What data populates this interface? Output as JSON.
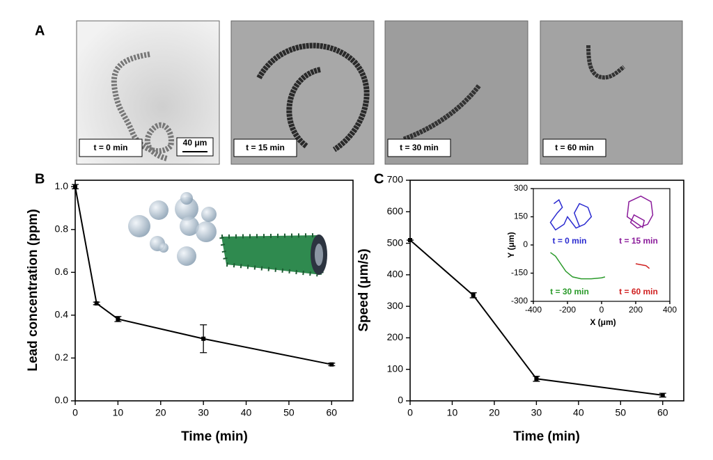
{
  "panel_a": {
    "label": "A",
    "frames": [
      {
        "label": "t = 0 min"
      },
      {
        "label": "t = 15 min"
      },
      {
        "label": "t = 30 min"
      },
      {
        "label": "t = 60 min"
      }
    ],
    "scale_bar": "40 μm"
  },
  "chart_data": [
    {
      "type": "line",
      "label": "B",
      "x_label": "Time (min)",
      "y_label": "Lead concentration (ppm)",
      "x": [
        0,
        5,
        10,
        30,
        60
      ],
      "values": [
        1.0,
        0.455,
        0.382,
        0.29,
        0.17
      ],
      "errors": [
        0.01,
        0.006,
        0.012,
        0.065,
        0.006
      ],
      "color": "#000000",
      "xlim": [
        0,
        65
      ],
      "xticks": [
        0,
        10,
        20,
        30,
        40,
        50,
        60
      ],
      "ylim": [
        0,
        1.03
      ],
      "yticks": [
        {
          "value": 0,
          "label": "0.0"
        },
        0.2,
        0.4,
        0.6,
        0.8,
        {
          "value": 1,
          "label": "1.0"
        }
      ]
    },
    {
      "type": "line",
      "label": "C",
      "x_label": "Time (min)",
      "y_label": "Speed (μm/s)",
      "x": [
        0,
        15,
        30,
        60
      ],
      "values": [
        510,
        335,
        70,
        18
      ],
      "errors": [
        0,
        8,
        8,
        6
      ],
      "color": "#000000",
      "xlim": [
        0,
        65
      ],
      "xticks": [
        0,
        10,
        20,
        30,
        40,
        50,
        60
      ],
      "ylim": [
        0,
        700
      ],
      "yticks": [
        0,
        100,
        200,
        300,
        400,
        500,
        600,
        700
      ]
    },
    {
      "type": "line",
      "x_label": "X (μm)",
      "y_label": "Y (μm)",
      "xlim": [
        -400,
        400
      ],
      "xticks": [
        -400,
        -200,
        0,
        200,
        400
      ],
      "ylim": [
        -300,
        300
      ],
      "yticks": [
        -300,
        -150,
        0,
        150,
        300
      ],
      "series": [
        {
          "name": "t = 0 min",
          "color": "#2a2ad0",
          "x": [
            -280,
            -250,
            -230,
            -260,
            -300,
            -270,
            -220,
            -200,
            -150,
            -100,
            -60,
            -80,
            -130,
            -160,
            -130
          ],
          "values": [
            220,
            240,
            200,
            170,
            120,
            80,
            110,
            150,
            90,
            110,
            150,
            200,
            220,
            170,
            100
          ]
        },
        {
          "name": "t = 15 min",
          "color": "#8a1a9a",
          "x": [
            230,
            150,
            160,
            230,
            290,
            300,
            270,
            210,
            170,
            190,
            250,
            240
          ],
          "values": [
            100,
            150,
            230,
            260,
            230,
            160,
            110,
            90,
            120,
            160,
            130,
            90
          ]
        },
        {
          "name": "t = 30 min",
          "color": "#2a9a2a",
          "x": [
            -300,
            -270,
            -240,
            -210,
            -170,
            -120,
            -60,
            0,
            20
          ],
          "values": [
            -40,
            -60,
            -100,
            -140,
            -170,
            -180,
            -180,
            -175,
            -170
          ]
        },
        {
          "name": "t = 60 min",
          "color": "#d02020",
          "x": [
            200,
            230,
            260,
            280
          ],
          "values": [
            -100,
            -105,
            -110,
            -125
          ]
        }
      ]
    }
  ]
}
